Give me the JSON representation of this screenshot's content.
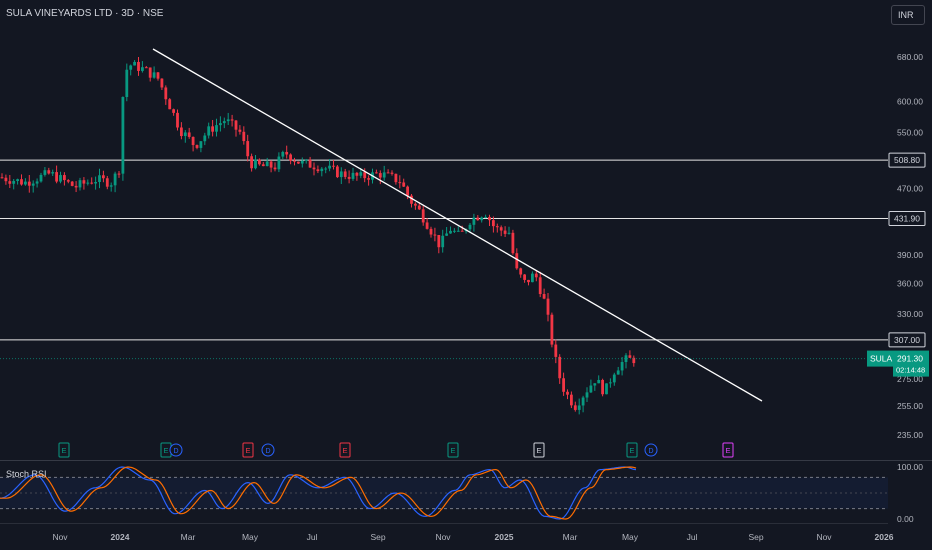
{
  "header": {
    "title": "SULA VINEYARDS LTD · 3D · NSE",
    "currency": "INR"
  },
  "chart_data": {
    "type": "candlestick",
    "symbol": "SULA",
    "price_axis": {
      "ticks": [
        "680.00",
        "600.00",
        "550.00",
        "470.00",
        "390.00",
        "360.00",
        "330.00",
        "275.00",
        "255.00",
        "235.00"
      ],
      "scale": "log"
    },
    "time_axis": {
      "labels": [
        "Nov",
        "2024",
        "Mar",
        "May",
        "Jul",
        "Sep",
        "Nov",
        "2025",
        "Mar",
        "May",
        "Jul",
        "Sep",
        "Nov",
        "2026"
      ]
    },
    "horizontal_levels": [
      "508.80",
      "431.90",
      "307.00"
    ],
    "last_price": {
      "symbol": "SULA",
      "value": "291.30",
      "countdown": "02:14:48",
      "color": "#089981"
    },
    "trendline": "descending from the 2024 high through the 2025 decline",
    "events": [
      "E",
      "E",
      "D",
      "E",
      "D",
      "E",
      "E",
      "E",
      "E",
      "D",
      "E"
    ],
    "oscillator": {
      "name": "Stoch RSI",
      "ticks": [
        "100.00",
        "0.00"
      ],
      "bands": [
        80,
        20
      ]
    },
    "colors": {
      "up": "#089981",
      "down": "#f23645",
      "background": "#131722",
      "k_line": "#2962ff",
      "d_line": "#ff6d00"
    }
  }
}
